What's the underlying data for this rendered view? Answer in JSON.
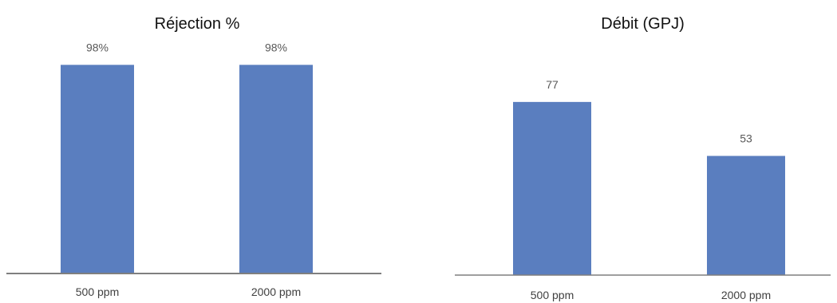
{
  "chart_data": [
    {
      "type": "bar",
      "title": "Réjection %",
      "categories": [
        "500 ppm",
        "2000 ppm"
      ],
      "values": [
        98,
        98
      ],
      "data_labels": [
        "98%",
        "98%"
      ],
      "xlabel": "",
      "ylabel": "",
      "ylim": [
        0,
        100
      ],
      "grid": false,
      "color": "#5a7ebf",
      "axis_color": "#7f7f7f"
    },
    {
      "type": "bar",
      "title": "Débit (GPJ)",
      "categories": [
        "500 ppm",
        "2000 ppm"
      ],
      "values": [
        77,
        53
      ],
      "data_labels": [
        "77",
        "53"
      ],
      "xlabel": "",
      "ylabel": "",
      "ylim": [
        0,
        100
      ],
      "grid": false,
      "color": "#5a7ebf",
      "axis_color": "#7f7f7f"
    }
  ]
}
